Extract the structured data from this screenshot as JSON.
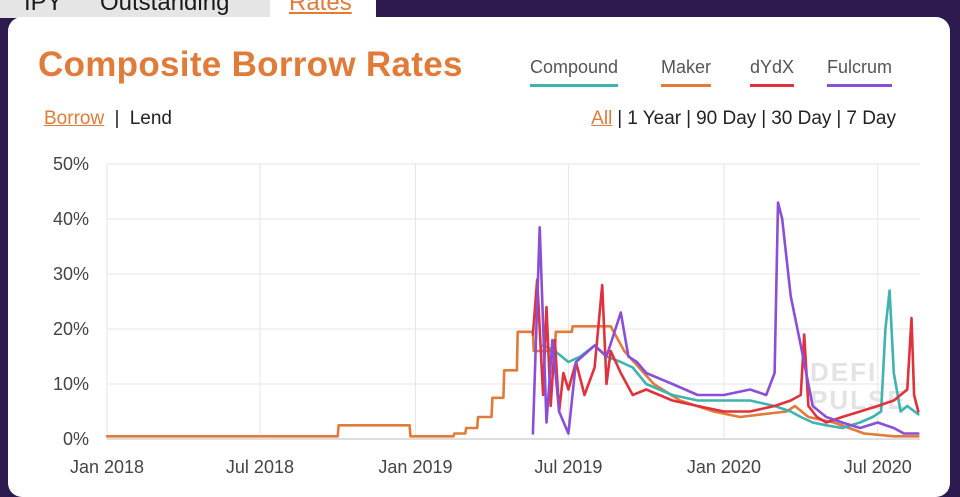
{
  "tabs": [
    {
      "label": "IPY"
    },
    {
      "label": "Outstanding"
    },
    {
      "label": "Rates"
    }
  ],
  "title": "Composite Borrow Rates",
  "legend": [
    {
      "name": "Compound",
      "color": "#3fb3b0"
    },
    {
      "name": "Maker",
      "color": "#e07b39"
    },
    {
      "name": "dYdX",
      "color": "#e0323c"
    },
    {
      "name": "Fulcrum",
      "color": "#8a4fd6"
    }
  ],
  "mode": {
    "borrow": "Borrow",
    "separator": "|",
    "lend": "Lend"
  },
  "ranges": {
    "all": "All",
    "y1": "1 Year",
    "d90": "90 Day",
    "d30": "30 Day",
    "d7": "7 Day",
    "separator": "|"
  },
  "watermark": {
    "line1": "DEFI",
    "line2": "PULSE"
  },
  "chart_data": {
    "type": "line",
    "yticks": [
      "0%",
      "10%",
      "20%",
      "30%",
      "40%",
      "50%"
    ],
    "xticks": [
      "Jan 2018",
      "Jul 2018",
      "Jan 2019",
      "Jul 2019",
      "Jan 2020",
      "Jul 2020"
    ],
    "ylim": [
      0,
      50
    ],
    "xlim": [
      "2018-01-01",
      "2020-08-20"
    ],
    "grid": true,
    "series": [
      {
        "name": "Maker",
        "color": "#e07b39",
        "x": [
          "2018-01-01",
          "2018-10-01",
          "2018-10-02",
          "2018-12-25",
          "2018-12-26",
          "2019-02-15",
          "2019-02-16",
          "2019-03-01",
          "2019-03-02",
          "2019-03-15",
          "2019-03-16",
          "2019-04-01",
          "2019-04-02",
          "2019-04-15",
          "2019-04-16",
          "2019-05-01",
          "2019-05-02",
          "2019-05-20",
          "2019-05-21",
          "2019-06-15",
          "2019-06-16",
          "2019-07-05",
          "2019-07-06",
          "2019-08-20",
          "2019-09-05",
          "2019-10-10",
          "2019-11-10",
          "2019-12-20",
          "2020-01-20",
          "2020-02-15",
          "2020-03-15",
          "2020-03-25",
          "2020-04-10",
          "2020-05-10",
          "2020-06-15",
          "2020-07-20",
          "2020-08-18"
        ],
        "values": [
          0.5,
          0.5,
          2.5,
          2.5,
          0.5,
          0.5,
          1,
          1,
          2,
          2,
          4,
          4,
          7.5,
          7.5,
          12.5,
          12.5,
          19.5,
          19.5,
          16,
          16,
          19.5,
          19.5,
          20.5,
          20.5,
          16,
          10,
          7,
          5,
          4,
          4.5,
          5,
          6,
          4,
          3,
          1,
          0.5,
          0.5
        ]
      },
      {
        "name": "Compound",
        "color": "#3fb3b0",
        "x": [
          "2019-06-01",
          "2019-06-15",
          "2019-07-01",
          "2019-07-15",
          "2019-08-01",
          "2019-08-15",
          "2019-09-01",
          "2019-09-15",
          "2019-10-01",
          "2019-11-01",
          "2019-12-01",
          "2020-01-01",
          "2020-02-01",
          "2020-03-01",
          "2020-03-20",
          "2020-04-01",
          "2020-04-15",
          "2020-05-01",
          "2020-05-20",
          "2020-06-10",
          "2020-06-25",
          "2020-07-05",
          "2020-07-10",
          "2020-07-15",
          "2020-07-20",
          "2020-07-28",
          "2020-08-05",
          "2020-08-18"
        ],
        "values": [
          17,
          16,
          14,
          15,
          17,
          15,
          14,
          13,
          10,
          8,
          7,
          7,
          7,
          6,
          5,
          4,
          3,
          2.5,
          2,
          3,
          4,
          5,
          20,
          27,
          12,
          5,
          6,
          4.5
        ]
      },
      {
        "name": "dYdX",
        "color": "#e0323c",
        "x": [
          "2019-05-20",
          "2019-05-25",
          "2019-06-01",
          "2019-06-05",
          "2019-06-10",
          "2019-06-15",
          "2019-06-20",
          "2019-06-25",
          "2019-07-01",
          "2019-07-10",
          "2019-07-20",
          "2019-08-01",
          "2019-08-10",
          "2019-08-15",
          "2019-08-20",
          "2019-09-01",
          "2019-09-15",
          "2019-10-01",
          "2019-11-01",
          "2019-12-01",
          "2020-01-01",
          "2020-02-01",
          "2020-03-01",
          "2020-03-20",
          "2020-04-01",
          "2020-04-05",
          "2020-04-10",
          "2020-04-20",
          "2020-05-01",
          "2020-05-20",
          "2020-06-10",
          "2020-07-01",
          "2020-07-20",
          "2020-08-05",
          "2020-08-10",
          "2020-08-13",
          "2020-08-18"
        ],
        "values": [
          19,
          29,
          8,
          24,
          6,
          18,
          5,
          12,
          9,
          14,
          8,
          13,
          28,
          10,
          16,
          12,
          8,
          9,
          7,
          6,
          5,
          5,
          6,
          7,
          8,
          19,
          6,
          4,
          3,
          4,
          5,
          6,
          7,
          9,
          22,
          8,
          5
        ]
      },
      {
        "name": "Fulcrum",
        "color": "#8a4fd6",
        "x": [
          "2019-05-20",
          "2019-05-28",
          "2019-06-05",
          "2019-06-12",
          "2019-06-20",
          "2019-07-01",
          "2019-07-10",
          "2019-08-01",
          "2019-08-15",
          "2019-09-01",
          "2019-09-10",
          "2019-09-20",
          "2019-10-01",
          "2019-11-01",
          "2019-12-01",
          "2020-01-01",
          "2020-02-01",
          "2020-02-20",
          "2020-03-01",
          "2020-03-05",
          "2020-03-10",
          "2020-03-20",
          "2020-04-01",
          "2020-04-15",
          "2020-05-01",
          "2020-05-20",
          "2020-06-10",
          "2020-07-01",
          "2020-07-20",
          "2020-08-01",
          "2020-08-18"
        ],
        "values": [
          1,
          38.5,
          3,
          18,
          5,
          1,
          14,
          17,
          15,
          23,
          15,
          14,
          12,
          10,
          8,
          8,
          9,
          8,
          12,
          43,
          40,
          26,
          17,
          6,
          4,
          3,
          2,
          3,
          2,
          1,
          1
        ]
      }
    ]
  }
}
